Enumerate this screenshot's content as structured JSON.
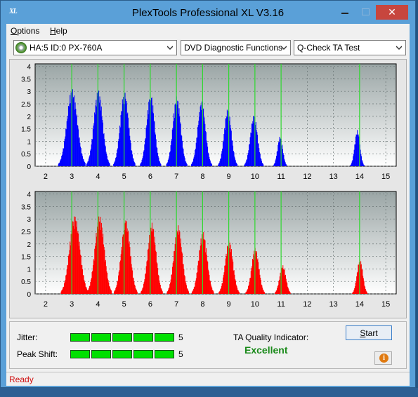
{
  "window": {
    "title": "PlexTools Professional XL V3.16",
    "icon_text": "XL"
  },
  "menu": [
    {
      "label": "Options"
    },
    {
      "label": "Help"
    }
  ],
  "toolbar": {
    "drive": "HA:5 ID:0  PX-760A",
    "function": "DVD Diagnostic Functions",
    "test": "Q-Check TA Test"
  },
  "chart_data": [
    {
      "type": "bar",
      "name": "top",
      "color": "#0000ff",
      "x_ticks": [
        2,
        3,
        4,
        5,
        6,
        7,
        8,
        9,
        10,
        11,
        12,
        13,
        14,
        15
      ],
      "y_ticks": [
        "0",
        "0.5",
        "1",
        "1.5",
        "2",
        "2.5",
        "3",
        "3.5",
        "4"
      ],
      "ylim": [
        0,
        4.1
      ],
      "xlim": [
        1.6,
        15.4
      ],
      "grid": true,
      "peaks": [
        {
          "center": 3.0,
          "height": 3.1,
          "width": 0.2
        },
        {
          "center": 4.0,
          "height": 3.05,
          "width": 0.17
        },
        {
          "center": 5.0,
          "height": 3.0,
          "width": 0.16
        },
        {
          "center": 6.0,
          "height": 2.95,
          "width": 0.15
        },
        {
          "center": 7.0,
          "height": 2.8,
          "width": 0.15
        },
        {
          "center": 7.95,
          "height": 2.6,
          "width": 0.15
        },
        {
          "center": 8.95,
          "height": 2.3,
          "width": 0.14
        },
        {
          "center": 9.95,
          "height": 2.05,
          "width": 0.14
        },
        {
          "center": 10.95,
          "height": 1.2,
          "width": 0.1
        },
        {
          "center": 13.9,
          "height": 1.45,
          "width": 0.1
        }
      ]
    },
    {
      "type": "bar",
      "name": "bottom",
      "color": "#ff0000",
      "x_ticks": [
        2,
        3,
        4,
        5,
        6,
        7,
        8,
        9,
        10,
        11,
        12,
        13,
        14,
        15
      ],
      "y_ticks": [
        "0",
        "0.5",
        "1",
        "1.5",
        "2",
        "2.5",
        "3",
        "3.5",
        "4"
      ],
      "ylim": [
        0,
        4.1
      ],
      "xlim": [
        1.6,
        15.4
      ],
      "grid": true,
      "peaks": [
        {
          "center": 3.1,
          "height": 3.15,
          "width": 0.2
        },
        {
          "center": 4.05,
          "height": 3.15,
          "width": 0.18
        },
        {
          "center": 5.05,
          "height": 3.0,
          "width": 0.17
        },
        {
          "center": 6.05,
          "height": 2.85,
          "width": 0.16
        },
        {
          "center": 7.05,
          "height": 2.75,
          "width": 0.16
        },
        {
          "center": 8.0,
          "height": 2.5,
          "width": 0.16
        },
        {
          "center": 9.0,
          "height": 2.15,
          "width": 0.15
        },
        {
          "center": 10.0,
          "height": 1.85,
          "width": 0.14
        },
        {
          "center": 11.05,
          "height": 1.15,
          "width": 0.12
        },
        {
          "center": 14.0,
          "height": 1.4,
          "width": 0.11
        }
      ]
    }
  ],
  "markers": [
    3,
    4,
    5,
    6,
    7,
    8,
    9,
    10,
    11,
    14
  ],
  "jitter": {
    "label": "Jitter:",
    "level": 5,
    "max": 5,
    "value": "5"
  },
  "peak_shift": {
    "label": "Peak Shift:",
    "level": 5,
    "max": 5,
    "value": "5"
  },
  "ta": {
    "label": "TA Quality Indicator:",
    "value": "Excellent"
  },
  "buttons": {
    "start": "Start"
  },
  "status": "Ready",
  "colors": {
    "good": "#1a8a1a",
    "meter": "#00e000",
    "status": "#d01010"
  }
}
